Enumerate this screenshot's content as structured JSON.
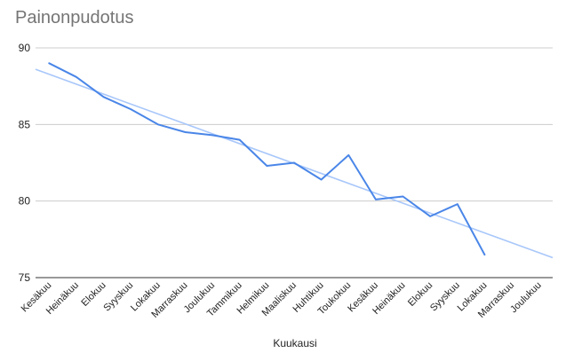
{
  "chart_data": {
    "type": "line",
    "title": "Painonpudotus",
    "xlabel": "Kuukausi",
    "ylabel": "",
    "ylim": [
      75,
      90
    ],
    "yticks": [
      75,
      80,
      85,
      90
    ],
    "grid": true,
    "legend": "none",
    "categories": [
      "Kesäkuu",
      "Heinäkuu",
      "Elokuu",
      "Syyskuu",
      "Lokakuu",
      "Marraskuu",
      "Joulukuu",
      "Tammikuu",
      "Helmikuu",
      "Maaliskuu",
      "Huhtikuu",
      "Toukokuu",
      "Kesäkuu",
      "Heinäkuu",
      "Elokuu",
      "Syyskuu",
      "Lokakuu",
      "Marraskuu",
      "Joulukuu"
    ],
    "series": [
      {
        "color": "#4a86e8",
        "values": [
          89.0,
          88.1,
          86.8,
          86.0,
          85.0,
          84.5,
          84.3,
          84.0,
          82.3,
          82.5,
          81.4,
          83.0,
          80.1,
          80.3,
          79.0,
          79.8,
          76.5,
          null,
          null
        ]
      }
    ],
    "trendline": {
      "type": "linear",
      "color": "#a8c7fa",
      "start_value": 88.6,
      "end_value": 76.3
    }
  }
}
